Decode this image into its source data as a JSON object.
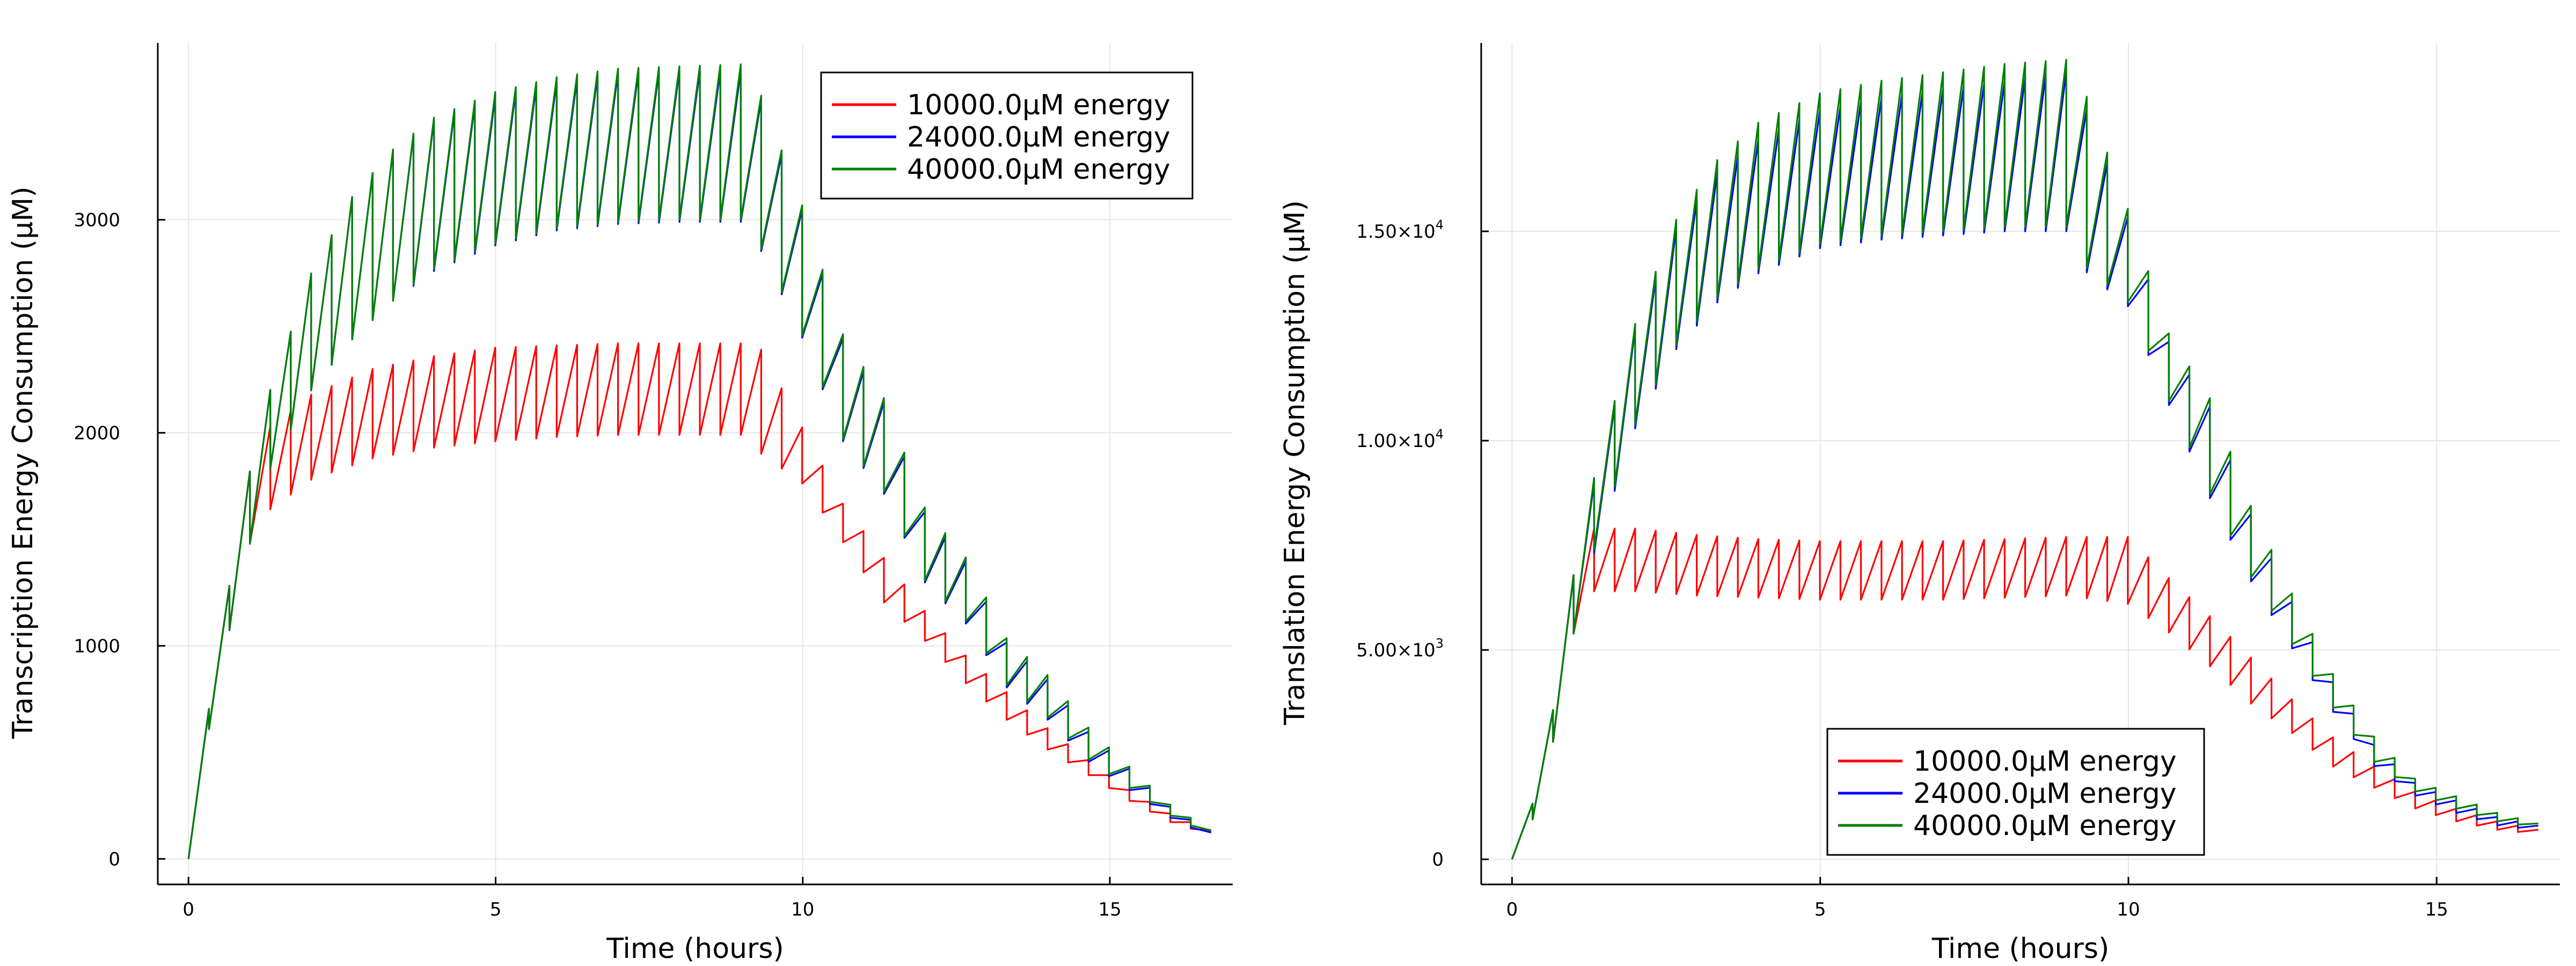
{
  "colors": {
    "s1": "#ff0000",
    "s2": "#0000ff",
    "s3": "#008000",
    "grid": "#e6e6e6",
    "axis": "#000000"
  },
  "chart_data": [
    {
      "type": "line",
      "xlabel": "Time (hours)",
      "ylabel": "Transcription Energy Consumption (μM)",
      "xlim": [
        -0.5,
        17.0
      ],
      "ylim": [
        -120,
        3830
      ],
      "xticks": [
        0,
        5,
        10,
        15
      ],
      "xtick_labels": [
        "0",
        "5",
        "10",
        "15"
      ],
      "yticks": [
        0,
        1000,
        2000,
        3000
      ],
      "ytick_labels": [
        "0",
        "1000",
        "2000",
        "3000"
      ],
      "grid": true,
      "legend_position": "top-right",
      "period_hours": 0.333,
      "series": [
        {
          "name": "10000.0μM energy",
          "color": "#ff0000",
          "envelope": {
            "t": [
              0,
              0.35,
              0.7,
              1.0,
              1.33,
              2,
              3,
              4,
              5,
              6,
              7,
              8,
              9,
              9.33,
              10,
              10.67,
              11.33,
              12,
              12.67,
              13.33,
              14,
              14.67,
              15.33,
              16,
              16.67
            ],
            "hi": [
              0,
              740,
              1340,
              1820,
              2030,
              2180,
              2300,
              2360,
              2400,
              2410,
              2420,
              2420,
              2420,
              2390,
              2020,
              1660,
              1410,
              1160,
              950,
              780,
              610,
              460,
              320,
              210,
              130
            ],
            "lo": [
              0,
              640,
              1120,
              1480,
              1640,
              1780,
              1880,
              1930,
              1960,
              1980,
              1990,
              1990,
              1990,
              1900,
              1760,
              1480,
              1200,
              1020,
              820,
              650,
              510,
              390,
              270,
              170,
              110
            ]
          }
        },
        {
          "name": "24000.0μM energy",
          "color": "#0000ff",
          "envelope": {
            "t": [
              0,
              0.35,
              0.7,
              1.0,
              1.33,
              2,
              2.67,
              3.33,
              4,
              5,
              6,
              7,
              8,
              9,
              9.33,
              10,
              10.67,
              11.33,
              12,
              12.67,
              13.33,
              14,
              14.67,
              15.33,
              16,
              16.67
            ],
            "hi": [
              0,
              740,
              1340,
              1820,
              2200,
              2750,
              3110,
              3330,
              3470,
              3580,
              3650,
              3690,
              3700,
              3700,
              3560,
              3040,
              2430,
              2140,
              1620,
              1390,
              1010,
              840,
              590,
              420,
              240,
              120
            ],
            "lo": [
              0,
              640,
              1120,
              1480,
              1830,
              2200,
              2440,
              2620,
              2760,
              2880,
              2950,
              2980,
              2990,
              2990,
              2850,
              2440,
              1950,
              1710,
              1290,
              1100,
              800,
              650,
              450,
              320,
              190,
              100
            ]
          }
        },
        {
          "name": "40000.0μM energy",
          "color": "#008000",
          "envelope": {
            "t": [
              0,
              0.35,
              0.7,
              1.0,
              1.33,
              2,
              2.67,
              3.33,
              4,
              5,
              6,
              7,
              8,
              9,
              9.33,
              10,
              10.67,
              11.33,
              12,
              12.67,
              13.33,
              14,
              14.67,
              15.33,
              16,
              16.67
            ],
            "hi": [
              0,
              740,
              1340,
              1820,
              2200,
              2750,
              3110,
              3330,
              3480,
              3600,
              3670,
              3710,
              3720,
              3730,
              3580,
              3060,
              2450,
              2160,
              1640,
              1410,
              1030,
              860,
              610,
              430,
              250,
              130
            ],
            "lo": [
              0,
              640,
              1120,
              1480,
              1830,
              2200,
              2440,
              2620,
              2770,
              2890,
              2960,
              2990,
              3000,
              3000,
              2860,
              2450,
              1960,
              1720,
              1300,
              1110,
              810,
              660,
              460,
              330,
              200,
              110
            ]
          }
        }
      ]
    },
    {
      "type": "line",
      "xlabel": "Time (hours)",
      "ylabel": "Translation Energy Consumption (μM)",
      "xlim": [
        -0.5,
        17.0
      ],
      "ylim": [
        -600,
        19500
      ],
      "xticks": [
        0,
        5,
        10,
        15
      ],
      "xtick_labels": [
        "0",
        "5",
        "10",
        "15"
      ],
      "yticks": [
        0,
        5000,
        10000,
        15000
      ],
      "ytick_labels": [
        {
          "m": "0",
          "e": ""
        },
        {
          "m": "5.00×10",
          "e": "3"
        },
        {
          "m": "1.00×10",
          "e": "4"
        },
        {
          "m": "1.50×10",
          "e": "4"
        }
      ],
      "grid": true,
      "legend_position": "bottom-right",
      "period_hours": 0.333,
      "series": [
        {
          "name": "10000.0μM energy",
          "color": "#ff0000",
          "envelope": {
            "t": [
              0,
              0.35,
              0.7,
              1.0,
              1.33,
              2,
              3,
              4,
              5,
              6,
              7,
              8,
              9,
              10,
              10.67,
              11.33,
              12,
              12.67,
              13.33,
              14,
              14.67,
              15.33,
              16,
              16.67
            ],
            "hi": [
              0,
              1400,
              3800,
              6800,
              7900,
              7900,
              7750,
              7650,
              7600,
              7600,
              7600,
              7650,
              7700,
              7700,
              6700,
              5800,
              4800,
              3800,
              2900,
              2200,
              1600,
              1200,
              900,
              700
            ],
            "lo": [
              0,
              1000,
              3000,
              5400,
              6400,
              6400,
              6300,
              6250,
              6200,
              6200,
              6200,
              6250,
              6300,
              6100,
              5400,
              4600,
              3700,
              3000,
              2200,
              1700,
              1200,
              900,
              700,
              600
            ]
          }
        },
        {
          "name": "24000.0μM energy",
          "color": "#0000ff",
          "envelope": {
            "t": [
              0,
              0.35,
              0.7,
              1.0,
              1.33,
              2,
              2.67,
              3.33,
              4,
              5,
              6,
              7,
              8,
              9,
              9.33,
              10,
              10.67,
              11.33,
              12,
              12.67,
              13.33,
              14,
              14.67,
              15.33,
              16,
              16.67
            ],
            "hi": [
              0,
              1400,
              3800,
              6800,
              9000,
              12700,
              15100,
              16400,
              17200,
              17900,
              18200,
              18400,
              18600,
              18800,
              17900,
              15300,
              12300,
              10800,
              8200,
              6100,
              4200,
              2700,
              1800,
              1400,
              1000,
              800
            ],
            "lo": [
              0,
              1000,
              3000,
              5400,
              7300,
              10300,
              12200,
              13300,
              14000,
              14600,
              14800,
              14900,
              15000,
              15000,
              14000,
              13200,
              10800,
              8600,
              6600,
              5000,
              3500,
              2200,
              1500,
              1100,
              800,
              700
            ]
          }
        },
        {
          "name": "40000.0μM energy",
          "color": "#008000",
          "envelope": {
            "t": [
              0,
              0.35,
              0.7,
              1.0,
              1.33,
              2,
              2.67,
              3.33,
              4,
              5,
              6,
              7,
              8,
              9,
              9.33,
              10,
              10.67,
              11.33,
              12,
              12.67,
              13.33,
              14,
              14.67,
              15.33,
              16,
              16.67
            ],
            "hi": [
              0,
              1400,
              3800,
              6800,
              9100,
              12800,
              15300,
              16700,
              17600,
              18300,
              18600,
              18800,
              19000,
              19100,
              18200,
              15500,
              12500,
              11000,
              8400,
              6300,
              4400,
              2900,
              1900,
              1500,
              1100,
              850
            ],
            "lo": [
              0,
              1000,
              3000,
              5400,
              7400,
              10400,
              12300,
              13400,
              14100,
              14700,
              14900,
              15000,
              15100,
              15100,
              14100,
              13300,
              10900,
              8700,
              6700,
              5100,
              3600,
              2300,
              1600,
              1200,
              900,
              750
            ]
          }
        }
      ]
    }
  ]
}
